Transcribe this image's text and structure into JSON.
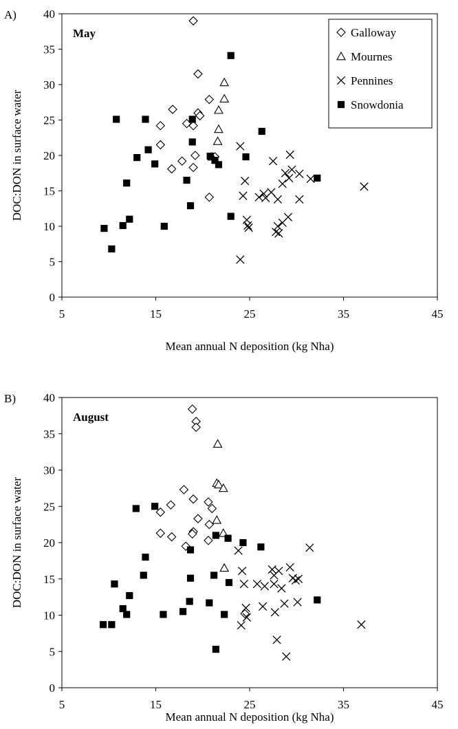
{
  "chart_data": [
    {
      "type": "scatter",
      "panel_label": "A)",
      "title": "May",
      "xlabel": "Mean annual N deposition (kg Nha)",
      "ylabel": "DOC:DON in surface water",
      "xlim": [
        5,
        45
      ],
      "ylim": [
        0,
        40
      ],
      "xticks": [
        "5",
        "15",
        "25",
        "35",
        "45"
      ],
      "yticks": [
        "0",
        "5",
        "10",
        "15",
        "20",
        "25",
        "30",
        "35",
        "40"
      ],
      "grid": false,
      "legend_position": "top-right",
      "series": [
        {
          "name": "Galloway",
          "marker": "diamond-open",
          "points": [
            [
              19.0,
              39.0
            ],
            [
              19.5,
              31.5
            ],
            [
              16.8,
              26.5
            ],
            [
              20.7,
              27.9
            ],
            [
              19.5,
              26.0
            ],
            [
              19.7,
              25.6
            ],
            [
              15.5,
              24.2
            ],
            [
              18.3,
              24.5
            ],
            [
              19.0,
              24.2
            ],
            [
              15.5,
              21.5
            ],
            [
              19.2,
              20.0
            ],
            [
              17.8,
              19.2
            ],
            [
              21.3,
              19.8
            ],
            [
              16.7,
              18.1
            ],
            [
              19.0,
              18.3
            ],
            [
              20.7,
              14.1
            ]
          ]
        },
        {
          "name": "Mournes",
          "marker": "triangle-open",
          "points": [
            [
              22.3,
              30.3
            ],
            [
              22.3,
              28.0
            ],
            [
              21.7,
              26.4
            ],
            [
              21.7,
              23.7
            ],
            [
              21.6,
              22.0
            ],
            [
              21.0,
              19.8
            ]
          ]
        },
        {
          "name": "Pennines",
          "marker": "x",
          "points": [
            [
              24.0,
              21.3
            ],
            [
              27.5,
              19.2
            ],
            [
              29.3,
              20.1
            ],
            [
              24.5,
              16.4
            ],
            [
              29.5,
              18.0
            ],
            [
              29.2,
              16.8
            ],
            [
              30.3,
              17.4
            ],
            [
              31.5,
              16.7
            ],
            [
              37.2,
              15.6
            ],
            [
              28.5,
              16.0
            ],
            [
              28.8,
              17.5
            ],
            [
              24.3,
              14.3
            ],
            [
              26.0,
              14.1
            ],
            [
              26.5,
              14.6
            ],
            [
              27.3,
              14.8
            ],
            [
              26.7,
              14.0
            ],
            [
              28.0,
              13.8
            ],
            [
              30.3,
              13.8
            ],
            [
              24.7,
              10.9
            ],
            [
              24.8,
              10.1
            ],
            [
              24.9,
              9.8
            ],
            [
              28.0,
              10.0
            ],
            [
              28.5,
              10.5
            ],
            [
              29.1,
              11.3
            ],
            [
              27.8,
              9.2
            ],
            [
              28.1,
              9.0
            ],
            [
              24.0,
              5.3
            ]
          ]
        },
        {
          "name": "Snowdonia",
          "marker": "square-filled",
          "points": [
            [
              23.0,
              34.1
            ],
            [
              10.8,
              25.1
            ],
            [
              13.9,
              25.1
            ],
            [
              18.9,
              25.1
            ],
            [
              26.3,
              23.4
            ],
            [
              14.2,
              20.8
            ],
            [
              13.0,
              19.7
            ],
            [
              18.9,
              21.9
            ],
            [
              24.6,
              19.8
            ],
            [
              20.8,
              19.9
            ],
            [
              21.3,
              19.3
            ],
            [
              21.7,
              18.7
            ],
            [
              14.9,
              18.8
            ],
            [
              11.9,
              16.1
            ],
            [
              18.3,
              16.5
            ],
            [
              32.2,
              16.8
            ],
            [
              18.7,
              12.9
            ],
            [
              23.0,
              11.4
            ],
            [
              12.2,
              11.0
            ],
            [
              11.5,
              10.1
            ],
            [
              15.9,
              10.0
            ],
            [
              9.5,
              9.7
            ],
            [
              10.3,
              6.8
            ]
          ]
        }
      ]
    },
    {
      "type": "scatter",
      "panel_label": "B)",
      "title": "August",
      "xlabel": "Mean annual N deposition (kg Nha)",
      "ylabel": "DOC:DON in surface water",
      "xlim": [
        5,
        45
      ],
      "ylim": [
        0,
        40
      ],
      "xticks": [
        "5",
        "15",
        "25",
        "35",
        "45"
      ],
      "yticks": [
        "0",
        "5",
        "10",
        "15",
        "20",
        "25",
        "30",
        "35",
        "40"
      ],
      "grid": false,
      "legend_position": "none",
      "series": [
        {
          "name": "Galloway",
          "marker": "diamond-open",
          "points": [
            [
              18.9,
              38.4
            ],
            [
              19.3,
              36.7
            ],
            [
              19.3,
              35.9
            ],
            [
              18.0,
              27.3
            ],
            [
              19.0,
              26.0
            ],
            [
              20.6,
              25.6
            ],
            [
              16.6,
              25.2
            ],
            [
              21.0,
              24.7
            ],
            [
              15.5,
              24.2
            ],
            [
              19.5,
              23.3
            ],
            [
              20.7,
              22.5
            ],
            [
              19.0,
              21.5
            ],
            [
              18.9,
              21.2
            ],
            [
              15.5,
              21.3
            ],
            [
              16.7,
              20.8
            ],
            [
              20.6,
              20.3
            ],
            [
              18.2,
              19.5
            ],
            [
              24.5,
              10.2
            ]
          ]
        },
        {
          "name": "Mournes",
          "marker": "triangle-open",
          "points": [
            [
              21.6,
              33.6
            ],
            [
              21.5,
              28.2
            ],
            [
              21.7,
              28.0
            ],
            [
              22.2,
              27.5
            ],
            [
              21.5,
              23.1
            ],
            [
              22.2,
              21.3
            ],
            [
              22.3,
              16.5
            ]
          ]
        },
        {
          "name": "Pennines",
          "marker": "x",
          "points": [
            [
              31.4,
              19.3
            ],
            [
              23.8,
              18.9
            ],
            [
              24.2,
              16.1
            ],
            [
              27.4,
              16.3
            ],
            [
              28.1,
              16.1
            ],
            [
              29.3,
              16.6
            ],
            [
              27.6,
              15.5
            ],
            [
              29.6,
              15.1
            ],
            [
              30.2,
              15.0
            ],
            [
              24.4,
              14.3
            ],
            [
              25.8,
              14.3
            ],
            [
              26.6,
              14.0
            ],
            [
              27.6,
              14.3
            ],
            [
              28.4,
              13.7
            ],
            [
              29.9,
              14.8
            ],
            [
              26.4,
              11.2
            ],
            [
              28.7,
              11.6
            ],
            [
              30.1,
              11.8
            ],
            [
              24.6,
              11.0
            ],
            [
              27.7,
              10.4
            ],
            [
              24.7,
              9.7
            ],
            [
              24.1,
              8.6
            ],
            [
              36.9,
              8.7
            ],
            [
              27.9,
              6.6
            ],
            [
              28.9,
              4.3
            ]
          ]
        },
        {
          "name": "Snowdonia",
          "marker": "square-filled",
          "points": [
            [
              12.9,
              24.7
            ],
            [
              14.9,
              25.0
            ],
            [
              13.9,
              18.0
            ],
            [
              21.4,
              21.0
            ],
            [
              22.7,
              20.6
            ],
            [
              24.3,
              20.0
            ],
            [
              26.2,
              19.4
            ],
            [
              18.7,
              19.0
            ],
            [
              13.7,
              15.5
            ],
            [
              18.7,
              15.1
            ],
            [
              21.2,
              15.5
            ],
            [
              22.8,
              14.5
            ],
            [
              10.6,
              14.3
            ],
            [
              12.2,
              12.7
            ],
            [
              32.2,
              12.1
            ],
            [
              18.6,
              11.9
            ],
            [
              20.7,
              11.7
            ],
            [
              11.5,
              10.9
            ],
            [
              17.9,
              10.5
            ],
            [
              11.9,
              10.1
            ],
            [
              15.8,
              10.1
            ],
            [
              22.3,
              10.1
            ],
            [
              9.4,
              8.7
            ],
            [
              10.3,
              8.7
            ],
            [
              21.4,
              5.3
            ]
          ]
        }
      ]
    }
  ]
}
